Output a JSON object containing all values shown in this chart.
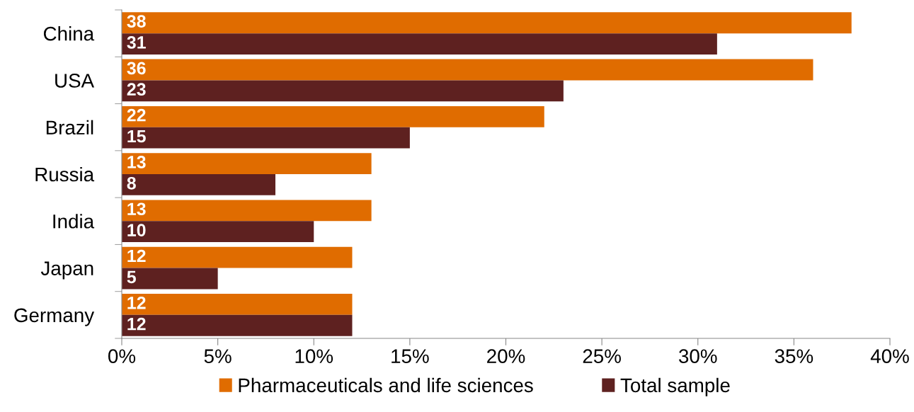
{
  "chart_data": {
    "type": "bar",
    "orientation": "horizontal",
    "categories": [
      "China",
      "USA",
      "Brazil",
      "Russia",
      "India",
      "Japan",
      "Germany"
    ],
    "series": [
      {
        "name": "Pharmaceuticals and life sciences",
        "color": "#e06c00",
        "values": [
          38,
          36,
          22,
          13,
          13,
          12,
          12
        ]
      },
      {
        "name": "Total sample",
        "color": "#5e2120",
        "values": [
          31,
          23,
          15,
          8,
          10,
          5,
          12
        ]
      }
    ],
    "xlim": [
      0,
      40
    ],
    "xticks": [
      {
        "value": 0,
        "label": "0%"
      },
      {
        "value": 5,
        "label": "5%"
      },
      {
        "value": 10,
        "label": "10%"
      },
      {
        "value": 15,
        "label": "15%"
      },
      {
        "value": 20,
        "label": "20%"
      },
      {
        "value": 25,
        "label": "25%"
      },
      {
        "value": 30,
        "label": "30%"
      },
      {
        "value": 35,
        "label": "35%"
      },
      {
        "value": 40,
        "label": "40%"
      }
    ],
    "data_labels": true,
    "grid": false,
    "legend": "bottom"
  }
}
